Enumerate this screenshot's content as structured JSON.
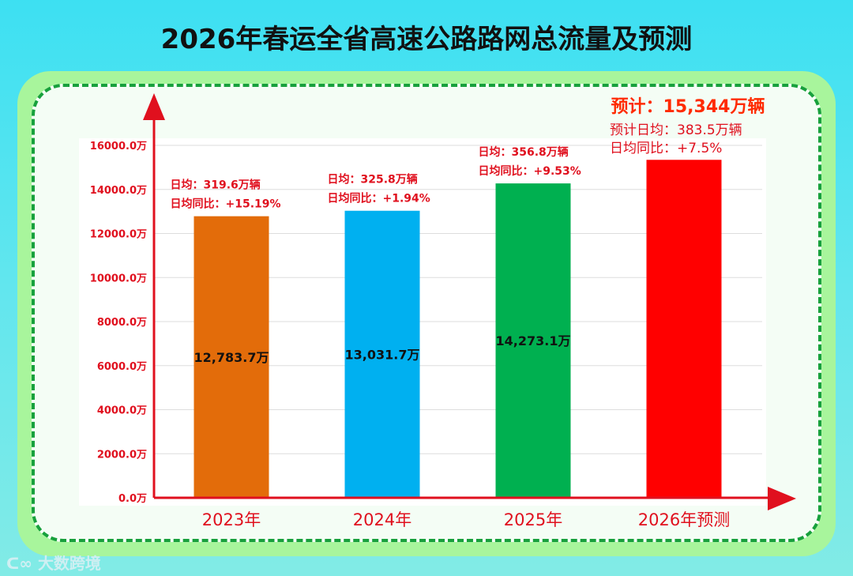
{
  "title": "2026年春运全省高速公路路网总流量及预测",
  "watermark": "大数跨境",
  "colors": {
    "axis": "#e0101e",
    "annot": "#e0101e",
    "forecast_headline": "#ff2a00"
  },
  "chart_data": {
    "type": "bar",
    "categories": [
      "2023年",
      "2024年",
      "2025年",
      "2026年预测"
    ],
    "values": [
      12783.7,
      13031.7,
      14273.1,
      15344
    ],
    "value_labels": [
      "12,783.7万",
      "13,031.7万",
      "14,273.1万",
      ""
    ],
    "bar_colors": [
      "#e36c0a",
      "#00b0f0",
      "#00b050",
      "#ff0000"
    ],
    "ylim": [
      0,
      16000
    ],
    "yticks": [
      "0.0万",
      "2000.0万",
      "4000.0万",
      "6000.0万",
      "8000.0万",
      "10000.0万",
      "12000.0万",
      "14000.0万",
      "16000.0万"
    ],
    "grid": true,
    "annotations": [
      {
        "line1": "日均：319.6万辆",
        "line2": "日均同比：+15.19%"
      },
      {
        "line1": "日均：325.8万辆",
        "line2": "日均同比：+1.94%"
      },
      {
        "line1": "日均：356.8万辆",
        "line2": "日均同比：+9.53%"
      },
      {
        "headline": "预计：15,344万辆",
        "line1": "预计日均：383.5万辆",
        "line2": "日均同比：+7.5%"
      }
    ]
  }
}
